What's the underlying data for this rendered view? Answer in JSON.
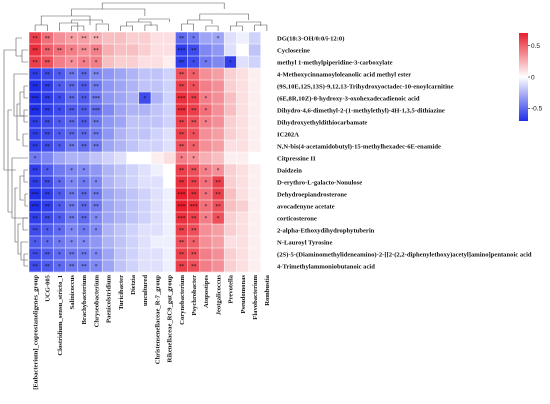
{
  "chart_data": {
    "type": "heatmap",
    "title": "",
    "rows": [
      "DG(18:3-OH/0:0/i-12:0)",
      "Cycloserine",
      "methyl 1-methylpiperidine-3-carboxylate",
      "4-Methoxycinnamoyloleanolic acid methyl ester",
      "(9S,10E,12S,13S)-9,12,13-Trihydroxyoctadec-10-enoylcarnitine",
      "(6E,8R,10Z)-8-hydroxy-3-oxohexadecadienoic acid",
      "Dihydro-4,6-dimethyl-2-(1-methylethyl)-4H-1,3,5-dithiazine",
      "Dihydroxyethyldithiocarbamate",
      "IC202A",
      "N,N-bis(4-acetamidobutyl)-15-methylhexadec-6E-enamide",
      "Citpressine II",
      "Daidzein",
      "D-erythro-L-galacto-Nonulose",
      "Dehydroepiandrosterone",
      "avocadenyne acetate",
      "corticosterone",
      "2-alpha-Ethoxydihydrophytuberin",
      "N-Lauroyl Tyrosine",
      "(2S)-5-(Diaminomethylideneamino)-2-[[2-(2,2-diphenylethoxy)acetyl]amino]pentanoic acid",
      "4-Trimethylammoniobutanoic acid"
    ],
    "columns": [
      "[Eubacterium]_coprostanoligenes_group",
      "UCG-005",
      "Clostridium_sensu_stricto_1",
      "Salinicoccus",
      "Brachybacterium",
      "Chryseobacterium",
      "Paenicolstridium",
      "Turicibacter",
      "Dietzia",
      "uncultured",
      "Christensenellaceae_R-7_group",
      "Rikenellaceae_RC9_gut_group",
      "Corynebacterium",
      "Psychrobacter",
      "Atopostipes",
      "Jeotgalicoccus",
      "Prevotella",
      "Pseudomonas",
      "Flavobacterium",
      "Rombustia"
    ],
    "values": [
      [
        0.6,
        0.45,
        0.35,
        0.3,
        0.3,
        0.25,
        0.2,
        0.2,
        0.15,
        0.15,
        0.1,
        0.1,
        -0.5,
        -0.45,
        -0.3,
        -0.3,
        -0.1,
        -0.05,
        -0.15,
        0.0
      ],
      [
        0.65,
        0.5,
        0.45,
        0.4,
        0.35,
        0.4,
        0.25,
        0.2,
        0.2,
        0.15,
        0.1,
        0.1,
        -0.65,
        -0.6,
        -0.4,
        -0.35,
        -0.1,
        0.0,
        -0.2,
        0.0
      ],
      [
        0.6,
        0.55,
        0.4,
        0.35,
        0.4,
        0.4,
        0.2,
        0.15,
        0.15,
        0.1,
        0.1,
        0.05,
        -0.65,
        -0.6,
        -0.45,
        -0.4,
        -0.65,
        -0.1,
        -0.15,
        0.0
      ],
      [
        -0.65,
        -0.6,
        -0.55,
        -0.45,
        -0.5,
        -0.4,
        -0.35,
        -0.3,
        -0.25,
        -0.2,
        -0.2,
        -0.15,
        0.55,
        0.5,
        0.35,
        0.3,
        0.15,
        0.1,
        0.05,
        0.0
      ],
      [
        -0.7,
        -0.65,
        -0.55,
        -0.5,
        -0.55,
        -0.45,
        -0.35,
        -0.3,
        -0.25,
        -0.2,
        -0.2,
        -0.15,
        0.6,
        0.55,
        0.4,
        0.35,
        0.15,
        0.1,
        0.05,
        0.0
      ],
      [
        -0.7,
        -0.65,
        -0.6,
        -0.5,
        -0.55,
        -0.45,
        -0.35,
        -0.3,
        -0.25,
        -0.6,
        -0.25,
        -0.15,
        0.65,
        0.6,
        0.4,
        0.35,
        0.2,
        0.1,
        0.05,
        0.0
      ],
      [
        -0.7,
        -0.65,
        -0.6,
        -0.55,
        -0.55,
        -0.5,
        -0.4,
        -0.3,
        -0.25,
        -0.25,
        -0.2,
        -0.15,
        0.65,
        0.6,
        0.45,
        0.35,
        0.2,
        0.1,
        0.05,
        0.0
      ],
      [
        -0.65,
        -0.6,
        -0.55,
        -0.5,
        -0.55,
        -0.45,
        -0.35,
        -0.3,
        -0.2,
        -0.2,
        -0.2,
        -0.15,
        0.6,
        0.55,
        0.4,
        0.35,
        0.15,
        0.1,
        0.05,
        0.0
      ],
      [
        -0.65,
        -0.6,
        -0.55,
        -0.5,
        -0.5,
        -0.45,
        -0.35,
        -0.25,
        -0.2,
        -0.2,
        -0.15,
        -0.1,
        0.6,
        0.55,
        0.35,
        0.3,
        0.15,
        0.1,
        0.05,
        0.0
      ],
      [
        -0.65,
        -0.6,
        -0.55,
        -0.45,
        -0.5,
        -0.45,
        -0.3,
        -0.25,
        -0.2,
        -0.15,
        -0.15,
        -0.1,
        0.55,
        0.5,
        0.35,
        0.3,
        0.1,
        0.1,
        0.05,
        0.0
      ],
      [
        -0.45,
        -0.4,
        -0.3,
        -0.25,
        -0.25,
        -0.2,
        -0.15,
        -0.1,
        0.0,
        0.0,
        0.05,
        0.1,
        0.4,
        0.35,
        0.25,
        0.2,
        0.05,
        0.05,
        0.0,
        0.0
      ],
      [
        -0.65,
        -0.55,
        -0.45,
        -0.4,
        -0.4,
        -0.35,
        -0.25,
        -0.2,
        -0.15,
        -0.1,
        -0.05,
        0.0,
        0.6,
        0.55,
        0.4,
        0.35,
        0.15,
        0.1,
        0.05,
        0.0
      ],
      [
        -0.65,
        -0.6,
        -0.5,
        -0.4,
        -0.45,
        -0.4,
        -0.25,
        -0.2,
        -0.15,
        -0.1,
        -0.1,
        0.0,
        0.65,
        0.6,
        0.45,
        0.6,
        0.15,
        0.1,
        0.05,
        0.0
      ],
      [
        -0.7,
        -0.65,
        -0.55,
        -0.45,
        -0.5,
        -0.45,
        -0.3,
        -0.25,
        -0.2,
        -0.15,
        -0.1,
        -0.05,
        0.7,
        0.65,
        0.45,
        0.6,
        0.2,
        0.1,
        0.05,
        0.0
      ],
      [
        -0.7,
        -0.65,
        -0.55,
        -0.45,
        -0.5,
        -0.45,
        -0.3,
        -0.25,
        -0.2,
        -0.15,
        -0.1,
        -0.05,
        0.7,
        0.65,
        0.45,
        0.55,
        0.2,
        0.15,
        0.05,
        0.0
      ],
      [
        -0.65,
        -0.6,
        -0.55,
        -0.45,
        -0.5,
        -0.4,
        -0.3,
        -0.25,
        -0.2,
        -0.15,
        -0.1,
        -0.05,
        0.65,
        0.6,
        0.4,
        0.55,
        0.15,
        0.1,
        0.05,
        0.0
      ],
      [
        -0.6,
        -0.55,
        -0.5,
        -0.4,
        -0.45,
        -0.4,
        -0.25,
        -0.2,
        -0.15,
        -0.1,
        -0.1,
        -0.05,
        0.6,
        0.55,
        0.35,
        0.3,
        0.15,
        0.1,
        0.05,
        0.0
      ],
      [
        -0.55,
        -0.5,
        -0.45,
        -0.4,
        -0.4,
        -0.35,
        -0.25,
        -0.2,
        -0.15,
        -0.1,
        -0.05,
        -0.05,
        0.55,
        0.5,
        0.35,
        0.3,
        0.1,
        0.1,
        0.05,
        0.0
      ],
      [
        -0.6,
        -0.55,
        -0.5,
        -0.45,
        -0.45,
        -0.4,
        -0.3,
        -0.2,
        -0.15,
        -0.1,
        -0.1,
        -0.05,
        0.6,
        0.55,
        0.4,
        0.35,
        0.15,
        0.1,
        0.05,
        0.0
      ],
      [
        -0.6,
        -0.55,
        -0.5,
        -0.45,
        -0.45,
        -0.4,
        -0.3,
        -0.2,
        -0.15,
        -0.1,
        -0.1,
        -0.05,
        0.6,
        0.55,
        0.4,
        0.35,
        0.15,
        0.1,
        0.05,
        0.0
      ]
    ],
    "significance": [
      [
        "**",
        "**",
        "",
        "*",
        "**",
        "**",
        "",
        "",
        "",
        "",
        "",
        "",
        "**",
        "*",
        "",
        "*",
        "",
        "",
        "",
        ""
      ],
      [
        "**",
        "**",
        "**",
        "*",
        "**",
        "**",
        "",
        "",
        "",
        "",
        "",
        "",
        "***",
        "**",
        "",
        "",
        "",
        "",
        "",
        ""
      ],
      [
        "**",
        "**",
        "",
        "*",
        "*",
        "*",
        "",
        "",
        "",
        "",
        "",
        "",
        "**",
        "*",
        "*",
        "",
        "*",
        "",
        "",
        ""
      ],
      [
        "**",
        "**",
        "*",
        "**",
        "**",
        "**",
        "",
        "",
        "",
        "",
        "",
        "",
        "**",
        "*",
        "",
        "",
        "",
        "",
        "",
        ""
      ],
      [
        "**",
        "**",
        "*",
        "**",
        "**",
        "**",
        "",
        "",
        "",
        "",
        "",
        "",
        "**",
        "*",
        "",
        "",
        "",
        "",
        "",
        ""
      ],
      [
        "***",
        "**",
        "*",
        "**",
        "**",
        "***",
        "",
        "",
        "",
        "*",
        "",
        "",
        "***",
        "**",
        "*",
        "",
        "",
        "",
        "",
        ""
      ],
      [
        "***",
        "**",
        "*",
        "**",
        "**",
        "***",
        "",
        "",
        "",
        "",
        "",
        "",
        "***",
        "**",
        "*",
        "",
        "",
        "",
        "",
        ""
      ],
      [
        "**",
        "**",
        "*",
        "**",
        "**",
        "**",
        "",
        "",
        "",
        "",
        "",
        "",
        "**",
        "**",
        "*",
        "",
        "",
        "",
        "",
        ""
      ],
      [
        "**",
        "**",
        "*",
        "**",
        "**",
        "**",
        "",
        "",
        "",
        "",
        "",
        "",
        "**",
        "*",
        "",
        "",
        "",
        "",
        "",
        ""
      ],
      [
        "**",
        "**",
        "*",
        "**",
        "**",
        "**",
        "",
        "",
        "",
        "",
        "",
        "",
        "**",
        "*",
        "",
        "",
        "",
        "",
        "",
        ""
      ],
      [
        "*",
        "",
        "",
        "",
        "",
        "",
        "",
        "",
        "",
        "",
        "",
        "",
        "*",
        "*",
        "",
        "",
        "",
        "",
        "",
        ""
      ],
      [
        "**",
        "*",
        "",
        "*",
        "*",
        "",
        "",
        "",
        "",
        "",
        "",
        "",
        "**",
        "**",
        "*",
        "*",
        "",
        "",
        "",
        ""
      ],
      [
        "**",
        "**",
        "*",
        "*",
        "*",
        "*",
        "",
        "",
        "",
        "",
        "",
        "",
        "**",
        "**",
        "*",
        "**",
        "",
        "",
        "",
        ""
      ],
      [
        "***",
        "**",
        "*",
        "**",
        "**",
        "**",
        "",
        "",
        "",
        "",
        "",
        "",
        "***",
        "**",
        "*",
        "**",
        "",
        "",
        "",
        ""
      ],
      [
        "***",
        "**",
        "*",
        "**",
        "**",
        "**",
        "",
        "",
        "",
        "",
        "",
        "",
        "***",
        "***",
        "*",
        "**",
        "",
        "",
        "",
        ""
      ],
      [
        "**",
        "**",
        "*",
        "**",
        "**",
        "*",
        "",
        "",
        "",
        "",
        "",
        "",
        "***",
        "**",
        "*",
        "*",
        "",
        "",
        "",
        ""
      ],
      [
        "**",
        "*",
        "*",
        "*",
        "*",
        "*",
        "",
        "",
        "",
        "",
        "",
        "",
        "**",
        "**",
        "",
        "",
        "",
        "",
        "",
        ""
      ],
      [
        "*",
        "*",
        "*",
        "*",
        "*",
        "",
        "",
        "",
        "",
        "",
        "",
        "",
        "**",
        "*",
        "",
        "",
        "",
        "",
        "",
        ""
      ],
      [
        "**",
        "**",
        "*",
        "**",
        "**",
        "*",
        "",
        "",
        "",
        "",
        "",
        "",
        "**",
        "**",
        "",
        "",
        "",
        "",
        "",
        ""
      ],
      [
        "**",
        "**",
        "*",
        "**",
        "**",
        "*",
        "",
        "",
        "",
        "",
        "",
        "",
        "**",
        "**",
        "",
        "",
        "",
        "",
        "",
        ""
      ]
    ],
    "color_scale": {
      "min": -0.7,
      "max": 0.7,
      "low_color": "#1f2ee8",
      "mid_color": "#ffffff",
      "high_color": "#e81f2e",
      "ticks": [
        "0.5",
        "0",
        "-0.5"
      ]
    },
    "legend_placement": "right"
  }
}
